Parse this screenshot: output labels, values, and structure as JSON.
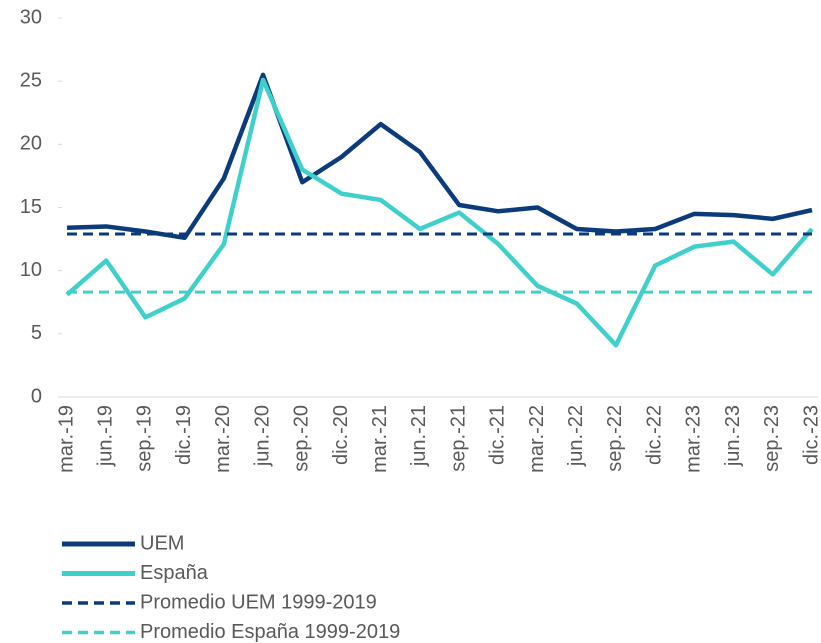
{
  "chart_data": {
    "type": "line",
    "categories": [
      "mar.-19",
      "jun.-19",
      "sep.-19",
      "dic.-19",
      "mar.-20",
      "jun.-20",
      "sep.-20",
      "dic.-20",
      "mar.-21",
      "jun.-21",
      "sep.-21",
      "dic.-21",
      "mar.-22",
      "jun.-22",
      "sep.-22",
      "dic.-22",
      "mar.-23",
      "jun.-23",
      "sep.-23",
      "dic.-23"
    ],
    "series": [
      {
        "name": "UEM",
        "color": "#0b3b7a",
        "dashed": false,
        "values": [
          13.4,
          13.5,
          13.1,
          12.6,
          17.3,
          25.5,
          17.0,
          19.0,
          21.6,
          19.4,
          15.2,
          14.7,
          15.0,
          13.3,
          13.1,
          13.3,
          14.5,
          14.4,
          14.1,
          14.8
        ]
      },
      {
        "name": "España",
        "color": "#3fd0cc",
        "dashed": false,
        "values": [
          8.1,
          10.8,
          6.3,
          7.8,
          12.1,
          25.1,
          18.0,
          16.1,
          15.6,
          13.3,
          14.6,
          12.1,
          8.8,
          7.4,
          4.1,
          10.4,
          11.9,
          12.3,
          9.7,
          13.3
        ]
      },
      {
        "name": "Promedio UEM 1999-2019",
        "color": "#0b3b7a",
        "dashed": true,
        "values": [
          12.9,
          12.9,
          12.9,
          12.9,
          12.9,
          12.9,
          12.9,
          12.9,
          12.9,
          12.9,
          12.9,
          12.9,
          12.9,
          12.9,
          12.9,
          12.9,
          12.9,
          12.9,
          12.9,
          12.9
        ]
      },
      {
        "name": "Promedio España 1999-2019",
        "color": "#3fd0cc",
        "dashed": true,
        "values": [
          8.3,
          8.3,
          8.3,
          8.3,
          8.3,
          8.3,
          8.3,
          8.3,
          8.3,
          8.3,
          8.3,
          8.3,
          8.3,
          8.3,
          8.3,
          8.3,
          8.3,
          8.3,
          8.3,
          8.3
        ]
      }
    ],
    "ylim": [
      0,
      30
    ],
    "yticks": [
      0,
      5,
      10,
      15,
      20,
      25,
      30
    ],
    "grid": false
  }
}
